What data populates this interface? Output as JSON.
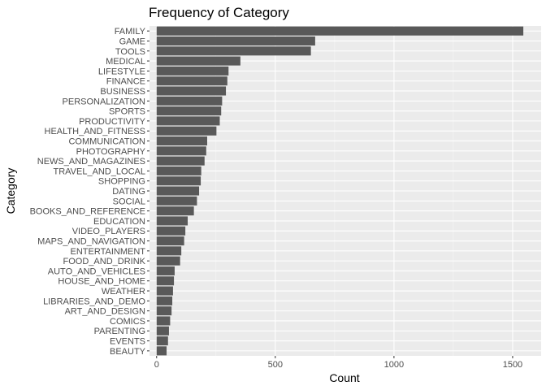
{
  "chart_data": {
    "type": "bar",
    "orientation": "horizontal",
    "title": "Frequency of Category",
    "xlabel": "Count",
    "ylabel": "Category",
    "categories": [
      "FAMILY",
      "GAME",
      "TOOLS",
      "MEDICAL",
      "LIFESTYLE",
      "FINANCE",
      "BUSINESS",
      "PERSONALIZATION",
      "SPORTS",
      "PRODUCTIVITY",
      "HEALTH_AND_FITNESS",
      "COMMUNICATION",
      "PHOTOGRAPHY",
      "NEWS_AND_MAGAZINES",
      "TRAVEL_AND_LOCAL",
      "SHOPPING",
      "DATING",
      "SOCIAL",
      "BOOKS_AND_REFERENCE",
      "EDUCATION",
      "VIDEO_PLAYERS",
      "MAPS_AND_NAVIGATION",
      "ENTERTAINMENT",
      "FOOD_AND_DRINK",
      "AUTO_AND_VEHICLES",
      "HOUSE_AND_HOME",
      "WEATHER",
      "LIBRARIES_AND_DEMO",
      "ART_AND_DESIGN",
      "COMICS",
      "PARENTING",
      "EVENTS",
      "BEAUTY"
    ],
    "values": [
      1545,
      668,
      650,
      353,
      303,
      298,
      292,
      276,
      272,
      266,
      252,
      213,
      209,
      202,
      188,
      186,
      179,
      170,
      157,
      131,
      121,
      116,
      104,
      99,
      76,
      73,
      69,
      66,
      63,
      57,
      52,
      48,
      42
    ],
    "xlim": [
      -30,
      1620
    ],
    "xticks": [
      0,
      500,
      1000,
      1500
    ],
    "grid": true,
    "legend": "none",
    "colors": {
      "bar": "#595959",
      "panel": "#ebebeb",
      "grid_major": "#ffffff",
      "grid_minor": "#f5f5f5"
    }
  }
}
